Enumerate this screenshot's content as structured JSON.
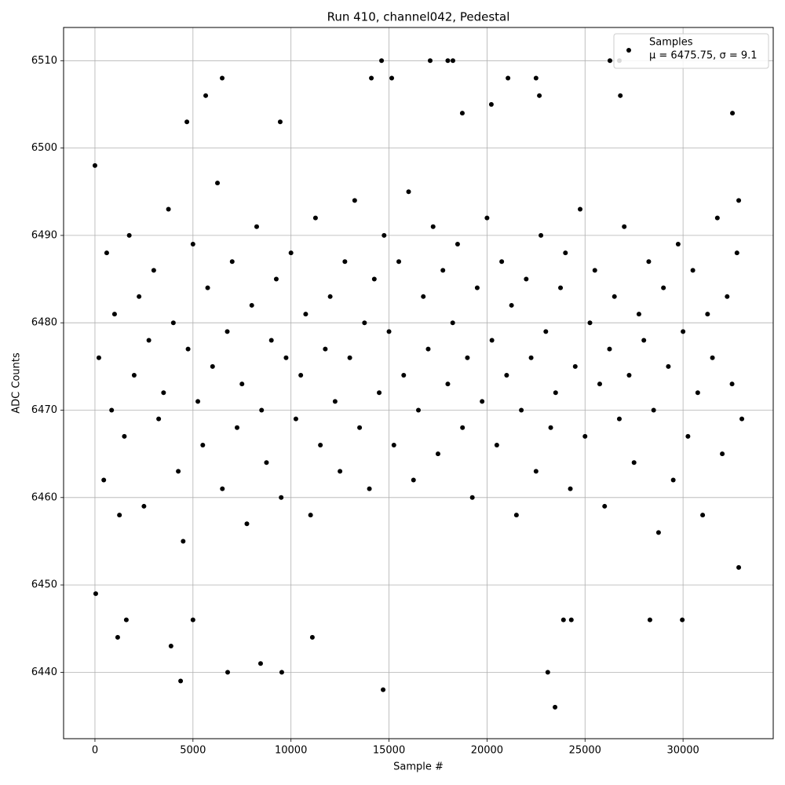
{
  "chart_data": {
    "type": "scatter",
    "title": "Run 410, channel042, Pedestal",
    "x_label": "Sample #",
    "y_label": "ADC Counts",
    "legend_stats": "μ = 6475.75, σ = 9.1",
    "legend_position": "upper right",
    "grid": true,
    "xlim": [
      -1600,
      34600
    ],
    "ylim": [
      6432.4,
      6513.8
    ],
    "xticks": [
      0,
      5000,
      10000,
      15000,
      20000,
      25000,
      30000
    ],
    "yticks": [
      6440,
      6450,
      6460,
      6470,
      6480,
      6490,
      6500,
      6510
    ],
    "series": [
      {
        "name": "Samples",
        "color": "#000000",
        "x": [
          14700,
          23470,
          23100,
          6770,
          4370,
          3880,
          9530,
          8450,
          14620,
          17100,
          18000,
          18260,
          26270,
          26750,
          6490,
          14100,
          15140,
          21070,
          22500,
          5000,
          40,
          1160,
          1600,
          11090,
          0,
          4690,
          9450,
          18740,
          20220,
          32520,
          26800,
          22670,
          5650,
          23900,
          24300,
          29960,
          28310,
          32840,
          32840,
          200,
          450,
          600,
          850,
          1000,
          1250,
          1500,
          1750,
          2000,
          2250,
          2500,
          2750,
          3000,
          3250,
          3500,
          3750,
          4000,
          4250,
          4500,
          4750,
          5000,
          5250,
          5500,
          5750,
          6000,
          6250,
          6500,
          6750,
          7000,
          7250,
          7500,
          7750,
          8000,
          8250,
          8500,
          8750,
          9000,
          9250,
          9500,
          9750,
          10000,
          10250,
          10500,
          10750,
          11000,
          11250,
          11500,
          11750,
          12000,
          12250,
          12500,
          12750,
          13000,
          13250,
          13500,
          13750,
          14000,
          14250,
          14500,
          14750,
          15000,
          15250,
          15500,
          15750,
          16000,
          16250,
          16500,
          16750,
          17000,
          17250,
          17500,
          17750,
          18000,
          18250,
          18500,
          18750,
          19000,
          19250,
          19500,
          19750,
          20000,
          20250,
          20500,
          20750,
          21000,
          21250,
          21500,
          21750,
          22000,
          22250,
          22500,
          22750,
          23000,
          23250,
          23500,
          23750,
          24000,
          24250,
          24500,
          24750,
          25000,
          25250,
          25500,
          25750,
          26000,
          26250,
          26500,
          26750,
          27000,
          27250,
          27500,
          27750,
          28000,
          28250,
          28500,
          28750,
          29000,
          29250,
          29500,
          29750,
          30000,
          30250,
          30500,
          30750,
          31000,
          31250,
          31500,
          31750,
          32000,
          32250,
          32500,
          32750,
          33000
        ],
        "values": [
          6438,
          6436,
          6440,
          6440,
          6439,
          6443,
          6440,
          6441,
          6510,
          6510,
          6510,
          6510,
          6510,
          6510,
          6508,
          6508,
          6508,
          6508,
          6508,
          6446,
          6449,
          6444,
          6446,
          6444,
          6498,
          6503,
          6503,
          6504,
          6505,
          6504,
          6506,
          6506,
          6506,
          6446,
          6446,
          6446,
          6446,
          6494,
          6452,
          6476,
          6462,
          6488,
          6470,
          6481,
          6458,
          6467,
          6490,
          6474,
          6483,
          6459,
          6478,
          6486,
          6469,
          6472,
          6493,
          6480,
          6463,
          6455,
          6477,
          6489,
          6471,
          6466,
          6484,
          6475,
          6496,
          6461,
          6479,
          6487,
          6468,
          6473,
          6457,
          6482,
          6491,
          6470,
          6464,
          6478,
          6485,
          6460,
          6476,
          6488,
          6469,
          6474,
          6481,
          6458,
          6492,
          6466,
          6477,
          6483,
          6471,
          6463,
          6487,
          6476,
          6494,
          6468,
          6480,
          6461,
          6485,
          6472,
          6490,
          6479,
          6466,
          6487,
          6474,
          6495,
          6462,
          6470,
          6483,
          6477,
          6491,
          6465,
          6486,
          6473,
          6480,
          6489,
          6468,
          6476,
          6460,
          6484,
          6471,
          6492,
          6478,
          6466,
          6487,
          6474,
          6482,
          6458,
          6470,
          6485,
          6476,
          6463,
          6490,
          6479,
          6468,
          6472,
          6484,
          6488,
          6461,
          6475,
          6493,
          6467,
          6480,
          6486,
          6473,
          6459,
          6477,
          6483,
          6469,
          6491,
          6474,
          6464,
          6481,
          6478,
          6487,
          6470,
          6456,
          6484,
          6475,
          6462,
          6489,
          6479,
          6467,
          6486,
          6472,
          6458,
          6481,
          6476,
          6492,
          6465,
          6483,
          6473,
          6488,
          6469
        ]
      }
    ]
  }
}
